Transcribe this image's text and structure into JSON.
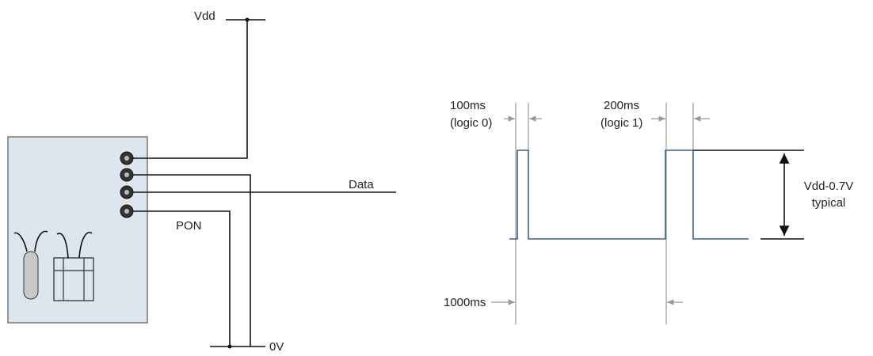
{
  "circuit": {
    "supply_label": "Vdd",
    "data_label": "Data",
    "pon_label": "PON",
    "ground_label": "0V"
  },
  "timing": {
    "pulse0_width": "100ms",
    "pulse0_meaning": "(logic 0)",
    "pulse1_width": "200ms",
    "pulse1_meaning": "(logic 1)",
    "amplitude": "Vdd-0.7V",
    "amplitude_note": "typical",
    "period": "1000ms"
  }
}
